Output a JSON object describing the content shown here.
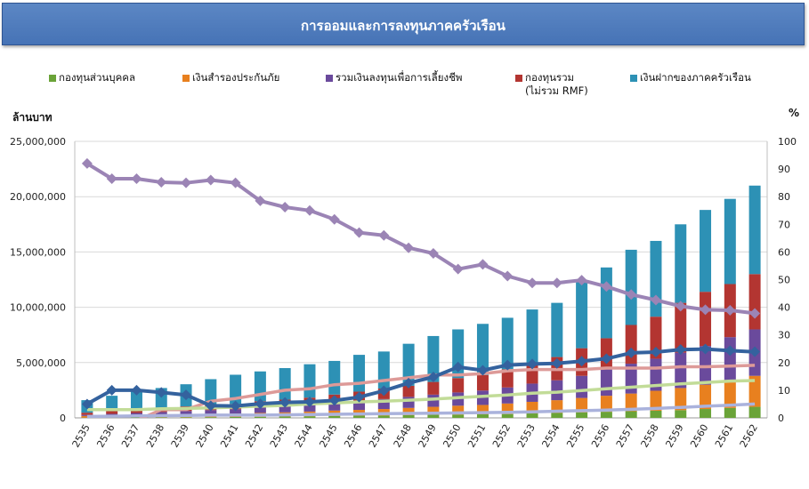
{
  "title": "การออมและการลงทุนภาคครัวเรือน",
  "chart_data": {
    "type": "bar",
    "stacked": true,
    "title": "การออมและการลงทุนภาคครัวเรือน",
    "ylabel_left": "ล้านบาท",
    "ylabel_right": "%",
    "ylim_left": [
      0,
      25000000
    ],
    "ylim_right": [
      0,
      100
    ],
    "left_ticks": [
      "0",
      "5,000,000",
      "10,000,000",
      "15,000,000",
      "20,000,000",
      "25,000,000"
    ],
    "right_ticks": [
      "0",
      "10",
      "20",
      "30",
      "40",
      "50",
      "60",
      "70",
      "80",
      "90",
      "100"
    ],
    "grid": true,
    "legend_position": "top",
    "categories": [
      "2535",
      "2536",
      "2537",
      "2538",
      "2539",
      "2540",
      "2541",
      "2542",
      "2543",
      "2544",
      "2545",
      "2546",
      "2547",
      "2548",
      "2549",
      "2550",
      "2551",
      "2552",
      "2553",
      "2554",
      "2555",
      "2556",
      "2557",
      "2558",
      "2559",
      "2560",
      "2561",
      "2562"
    ],
    "series": [
      {
        "name": "กองทุนส่วนบุคคล",
        "name_line2": "",
        "color": "#6aa338",
        "values": [
          20000,
          30000,
          40000,
          50000,
          60000,
          70000,
          80000,
          100000,
          120000,
          150000,
          180000,
          200000,
          220000,
          250000,
          280000,
          300000,
          320000,
          350000,
          400000,
          450000,
          500000,
          550000,
          600000,
          650000,
          700000,
          800000,
          900000,
          1000000
        ]
      },
      {
        "name": "เงินสำรองประกันภัย",
        "name_line2": "",
        "color": "#e8801f",
        "values": [
          150000,
          180000,
          200000,
          230000,
          260000,
          280000,
          300000,
          350000,
          380000,
          420000,
          480000,
          520000,
          580000,
          650000,
          720000,
          800000,
          850000,
          950000,
          1050000,
          1150000,
          1300000,
          1450000,
          1600000,
          1800000,
          2000000,
          2200000,
          2500000,
          2800000
        ]
      },
      {
        "name": "รวมเงินลงทุนเพื่อการเลี้ยงชีพ",
        "name_line2": "",
        "color": "#6a4a9c",
        "values": [
          100000,
          150000,
          200000,
          250000,
          300000,
          350000,
          400000,
          500000,
          550000,
          600000,
          700000,
          800000,
          900000,
          1000000,
          1100000,
          1200000,
          1300000,
          1450000,
          1650000,
          1800000,
          2000000,
          2400000,
          2700000,
          2900000,
          3200000,
          3500000,
          3900000,
          4200000
        ]
      },
      {
        "name": "กองทุนรวม",
        "name_line2": "(ไม่รวม RMF)",
        "color": "#b33531",
        "values": [
          200000,
          260000,
          320000,
          370000,
          420000,
          450000,
          480000,
          550000,
          600000,
          660000,
          750000,
          850000,
          950000,
          1000000,
          1150000,
          1300000,
          1400000,
          1650000,
          1900000,
          2100000,
          2500000,
          2800000,
          3500000,
          3800000,
          4500000,
          4900000,
          4800000,
          5000000
        ]
      },
      {
        "name": "เงินฝากของภาคครัวเรือน",
        "name_line2": "",
        "color": "#2d91b5",
        "values": [
          1130000,
          1380000,
          1740000,
          1800000,
          2000000,
          2350000,
          2640000,
          2700000,
          2850000,
          3020000,
          3040000,
          3330000,
          3350000,
          3800000,
          4150000,
          4400000,
          4630000,
          4650000,
          4800000,
          4900000,
          6000000,
          6400000,
          6800000,
          6850000,
          7100000,
          7400000,
          7700000,
          8000000
        ]
      }
    ],
    "line_series": [
      {
        "axis": "right",
        "color": "#9b84b5",
        "marker": "diamond",
        "values": [
          92,
          86.5,
          86.5,
          85.2,
          85,
          86,
          85,
          78.5,
          76.2,
          75,
          71.8,
          67,
          66,
          61.5,
          59.5,
          53.8,
          55.5,
          51.3,
          48.8,
          48.8,
          49.8,
          47.5,
          44.6,
          42.6,
          40.4,
          39.1,
          38.9,
          37.8
        ]
      },
      {
        "axis": "right",
        "color": "#34629e",
        "marker": "diamond",
        "values": [
          5,
          10,
          10,
          9.2,
          8.3,
          4.4,
          4.3,
          5.1,
          5.6,
          5.8,
          6.3,
          7.5,
          9.8,
          12.6,
          14.8,
          18.4,
          17.2,
          19.1,
          19.5,
          19.7,
          20.5,
          21.4,
          23.5,
          23.8,
          24.7,
          24.9,
          24.3,
          23.9
        ]
      },
      {
        "axis": "right",
        "color": "#dd9a98",
        "marker": "none",
        "values": [
          -1,
          -1,
          -1,
          3,
          3,
          6,
          7,
          8.5,
          10,
          10.5,
          12,
          12.5,
          13.5,
          14.5,
          15.5,
          15.5,
          16,
          17,
          17.5,
          17.5,
          17.5,
          18,
          18,
          18,
          18.5,
          18.5,
          18.7,
          19
        ]
      },
      {
        "axis": "right",
        "color": "#c2dc98",
        "marker": "none",
        "values": [
          3,
          3,
          3,
          3.3,
          3.4,
          3.6,
          3.9,
          4.2,
          4.5,
          5,
          5.4,
          5.8,
          6,
          6.4,
          6.8,
          7.3,
          7.8,
          8.3,
          8.9,
          9.3,
          9.9,
          10.5,
          11.1,
          11.7,
          12.3,
          12.8,
          13.3,
          13.5
        ]
      },
      {
        "axis": "right",
        "color": "#aab2dc",
        "marker": "none",
        "values": [
          0.5,
          0.6,
          0.7,
          0.8,
          0.9,
          1,
          1,
          1,
          1.1,
          1.2,
          1.3,
          1.4,
          1.5,
          1.6,
          1.7,
          1.8,
          1.9,
          2,
          2.2,
          2.4,
          2.6,
          2.8,
          3.1,
          3.4,
          3.8,
          4.2,
          4.6,
          5
        ]
      }
    ]
  }
}
